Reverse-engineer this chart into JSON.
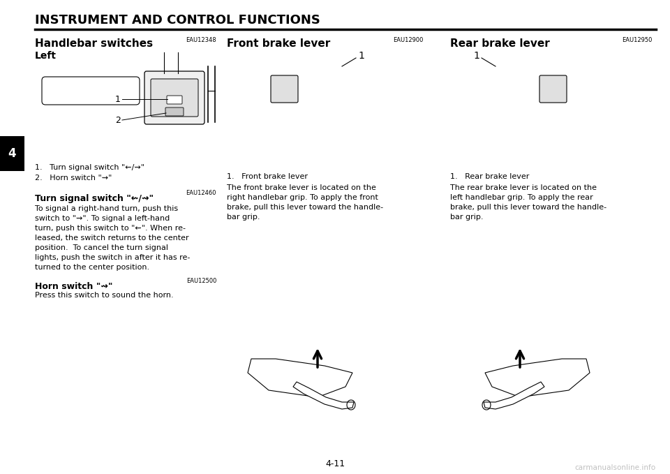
{
  "title": "INSTRUMENT AND CONTROL FUNCTIONS",
  "page_number": "4-11",
  "chapter_number": "4",
  "background_color": "#ffffff",
  "text_color": "#000000",
  "watermark": "carmanualsonline.info",
  "watermark_color": "#c0c0c0",
  "sec0_code": "EAU12348",
  "sec0_heading": "Handlebar switches",
  "sec0_sub": "Left",
  "sec0_item1": "Turn signal switch \"⇜/⇝\"",
  "sec0_item2": "Horn switch \"⇝\"",
  "sec1_code": "EAU12460",
  "sec1_heading": "Turn signal switch \"⇜/⇝\"",
  "sec1_body": [
    "To signal a right-hand turn, push this",
    "switch to \"⇝\". To signal a left-hand",
    "turn, push this switch to \"⇜\". When re-",
    "leased, the switch returns to the center",
    "position.  To cancel the turn signal",
    "lights, push the switch in after it has re-",
    "turned to the center position."
  ],
  "sec2_code": "EAU12500",
  "sec2_heading": "Horn switch \"⇝\"",
  "sec2_body": "Press this switch to sound the horn.",
  "sec3_code": "EAU12900",
  "sec3_heading": "Front brake lever",
  "sec3_item1": "Front brake lever",
  "sec3_body": [
    "The front brake lever is located on the",
    "right handlebar grip. To apply the front",
    "brake, pull this lever toward the handle-",
    "bar grip."
  ],
  "sec4_code": "EAU12950",
  "sec4_heading": "Rear brake lever",
  "sec4_item1": "Rear brake lever",
  "sec4_body": [
    "The rear brake lever is located on the",
    "left handlebar grip. To apply the rear",
    "brake, pull this lever toward the handle-",
    "bar grip."
  ]
}
